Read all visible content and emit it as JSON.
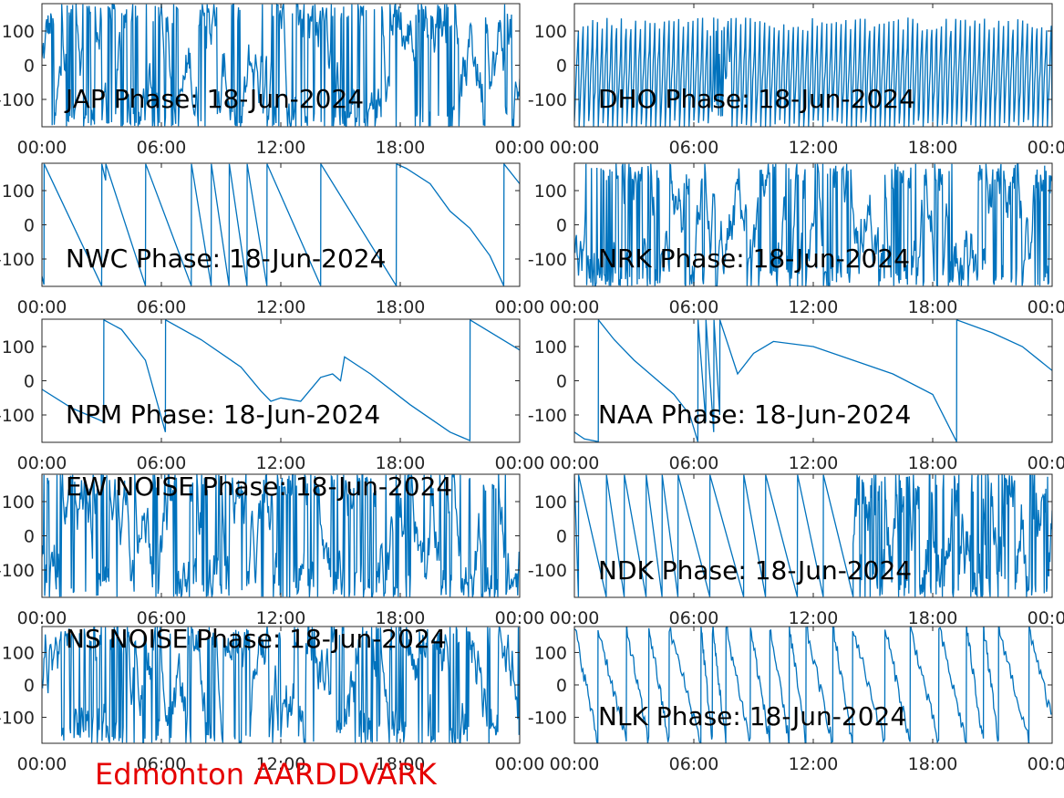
{
  "footer": {
    "text": "Edmonton AARDDVARK",
    "color": "#e50000"
  },
  "style": {
    "line_color": "#0072bd",
    "axis_color": "#262626"
  },
  "chart_data": [
    {
      "type": "line",
      "title": "JAP Phase: 18-Jun-2024",
      "x_ticks": [
        "00:00",
        "06:00",
        "12:00",
        "18:00",
        "00:00"
      ],
      "xlim": [
        0,
        24
      ],
      "y_ticks": [
        "100",
        "0",
        "-100"
      ],
      "ylim": [
        -180,
        180
      ],
      "series": [
        {
          "pattern": "noise",
          "x": [
            0,
            24
          ],
          "y": [
            -180,
            180
          ]
        }
      ]
    },
    {
      "type": "line",
      "title": "DHO Phase: 18-Jun-2024",
      "x_ticks": [
        "00:00",
        "06:00",
        "12:00",
        "18:00",
        "00:00"
      ],
      "xlim": [
        0,
        24
      ],
      "y_ticks": [
        "100",
        "0",
        "-100"
      ],
      "ylim": [
        -180,
        180
      ],
      "series": [
        {
          "pattern": "fast-wrap",
          "x": [
            0,
            24
          ],
          "y": [
            -180,
            180
          ]
        }
      ]
    },
    {
      "type": "line",
      "title": "NWC Phase: 18-Jun-2024",
      "x_ticks": [
        "00:00",
        "06:00",
        "12:00",
        "18:00",
        "00:00"
      ],
      "xlim": [
        0,
        24
      ],
      "y_ticks": [
        "100",
        "0",
        "-100"
      ],
      "ylim": [
        -180,
        180
      ],
      "series": [
        {
          "x": [
            0,
            0.1,
            0.11,
            3.0,
            3.01,
            3.2,
            3.21,
            5.2,
            5.21,
            7.5,
            7.51,
            8.5,
            8.51,
            9.4,
            9.41,
            10.3,
            10.31,
            11.3,
            11.31,
            14.0,
            14.01,
            17.8,
            17.81,
            18.3,
            19.5,
            20.5,
            21.5,
            22.5,
            23.2,
            23.21,
            24
          ],
          "y": [
            -150,
            -175,
            178,
            -178,
            178,
            130,
            178,
            -178,
            178,
            -178,
            178,
            -178,
            178,
            -178,
            178,
            -178,
            178,
            -178,
            178,
            -178,
            178,
            -178,
            178,
            165,
            120,
            40,
            -10,
            -90,
            -178,
            178,
            120
          ]
        }
      ]
    },
    {
      "type": "line",
      "title": "NRK Phase: 18-Jun-2024",
      "x_ticks": [
        "00:00",
        "06:00",
        "12:00",
        "18:00",
        "00:00"
      ],
      "xlim": [
        0,
        24
      ],
      "y_ticks": [
        "100",
        "0",
        "-100"
      ],
      "ylim": [
        -180,
        180
      ],
      "series": [
        {
          "pattern": "noise",
          "x": [
            0,
            24
          ],
          "y": [
            -180,
            180
          ]
        }
      ]
    },
    {
      "type": "line",
      "title": "NPM Phase: 18-Jun-2024",
      "x_ticks": [
        "00:00",
        "06:00",
        "12:00",
        "18:00",
        "00:00"
      ],
      "xlim": [
        0,
        24
      ],
      "y_ticks": [
        "100",
        "0",
        "-100"
      ],
      "ylim": [
        -180,
        180
      ],
      "series": [
        {
          "x": [
            0,
            1.5,
            3.1,
            3.11,
            4.0,
            5.2,
            6.2,
            6.21,
            8.0,
            10.0,
            11.0,
            11.5,
            12.0,
            13.0,
            14.0,
            14.6,
            15.0,
            15.2,
            16.5,
            18.5,
            20.5,
            21.5,
            21.51,
            24
          ],
          "y": [
            -25,
            -80,
            -120,
            178,
            150,
            60,
            -150,
            178,
            120,
            40,
            -30,
            -60,
            -50,
            -60,
            10,
            20,
            0,
            70,
            20,
            -70,
            -150,
            -175,
            178,
            90
          ]
        }
      ]
    },
    {
      "type": "line",
      "title": "NAA Phase: 18-Jun-2024",
      "x_ticks": [
        "00:00",
        "06:00",
        "12:00",
        "18:00",
        "00:00"
      ],
      "xlim": [
        0,
        24
      ],
      "y_ticks": [
        "100",
        "0",
        "-100"
      ],
      "ylim": [
        -180,
        180
      ],
      "series": [
        {
          "x": [
            0,
            0.5,
            1.2,
            1.21,
            2.0,
            3.0,
            4.0,
            5.0,
            5.8,
            6.2,
            6.21,
            6.6,
            6.61,
            7.0,
            7.01,
            7.3,
            7.31,
            8.2,
            9.0,
            10.0,
            12.0,
            14.0,
            16.0,
            18.0,
            19.2,
            19.21,
            21.0,
            22.5,
            24
          ],
          "y": [
            -150,
            -170,
            -178,
            178,
            120,
            60,
            10,
            -40,
            -100,
            -178,
            178,
            -120,
            178,
            -150,
            178,
            -100,
            178,
            20,
            80,
            115,
            100,
            60,
            20,
            -40,
            -178,
            178,
            140,
            100,
            30
          ]
        }
      ]
    },
    {
      "type": "line",
      "title": "EW NOISE Phase: 18-Jun-2024",
      "x_ticks": [
        "00:00",
        "06:00",
        "12:00",
        "18:00",
        "00:00"
      ],
      "xlim": [
        0,
        24
      ],
      "y_ticks": [
        "100",
        "0",
        "-100"
      ],
      "ylim": [
        -180,
        180
      ],
      "series": [
        {
          "pattern": "noise",
          "x": [
            0,
            24
          ],
          "y": [
            -180,
            180
          ]
        }
      ]
    },
    {
      "type": "line",
      "title": "NDK Phase: 18-Jun-2024",
      "x_ticks": [
        "00:00",
        "06:00",
        "12:00",
        "18:00",
        "00:00"
      ],
      "xlim": [
        0,
        24
      ],
      "y_ticks": [
        "100",
        "0",
        "-100"
      ],
      "ylim": [
        -180,
        180
      ],
      "series": [
        {
          "pattern": "sawtooth-then-noise",
          "x": [
            0,
            24
          ],
          "y": [
            -180,
            180
          ]
        }
      ]
    },
    {
      "type": "line",
      "title": "NS NOISE Phase: 18-Jun-2024",
      "x_ticks": [
        "00:00",
        "06:00",
        "12:00",
        "18:00",
        "00:00"
      ],
      "xlim": [
        0,
        24
      ],
      "y_ticks": [
        "100",
        "0",
        "-100"
      ],
      "ylim": [
        -180,
        180
      ],
      "series": [
        {
          "pattern": "noise",
          "x": [
            0,
            24
          ],
          "y": [
            -180,
            180
          ]
        }
      ]
    },
    {
      "type": "line",
      "title": "NLK Phase: 18-Jun-2024",
      "x_ticks": [
        "00:00",
        "06:00",
        "12:00",
        "18:00",
        "00:00"
      ],
      "xlim": [
        0,
        24
      ],
      "y_ticks": [
        "100",
        "0",
        "-100"
      ],
      "ylim": [
        -180,
        180
      ],
      "series": [
        {
          "pattern": "noisy-sawtooth",
          "x": [
            0,
            24
          ],
          "y": [
            -180,
            180
          ]
        }
      ]
    }
  ]
}
